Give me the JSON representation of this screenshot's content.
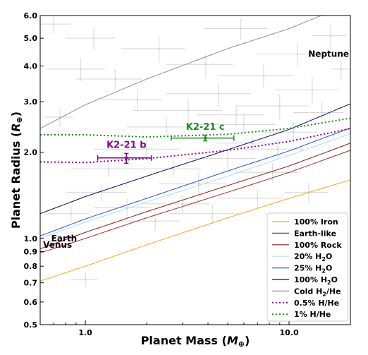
{
  "chart_data": {
    "type": "line",
    "xlabel": "Planet Mass (M⊕)",
    "xlabel_main": "Planet Mass (",
    "xlabel_symbol": "M",
    "xlabel_sub": "⊕",
    "xlabel_close": ")",
    "ylabel": "Planet Radius (R⊕)",
    "ylabel_main": "Planet Radius (",
    "ylabel_symbol": "R",
    "ylabel_sub": "⊕",
    "ylabel_close": ")",
    "xscale": "log",
    "yscale": "log",
    "xlim": [
      0.6,
      20
    ],
    "ylim": [
      0.5,
      6.0
    ],
    "x_ticks": [
      {
        "value": 1.0,
        "label": "1.0"
      },
      {
        "value": 10.0,
        "label": "10.0"
      }
    ],
    "y_ticks": [
      {
        "value": 0.5,
        "label": "0.5"
      },
      {
        "value": 0.6,
        "label": "0.6"
      },
      {
        "value": 0.7,
        "label": "0.7"
      },
      {
        "value": 0.8,
        "label": "0.8"
      },
      {
        "value": 0.9,
        "label": "0.9"
      },
      {
        "value": 1.0,
        "label": "1.0"
      },
      {
        "value": 2.0,
        "label": "2.0"
      },
      {
        "value": 3.0,
        "label": "3.0"
      },
      {
        "value": 4.0,
        "label": "4.0"
      },
      {
        "value": 5.0,
        "label": "5.0"
      },
      {
        "value": 6.0,
        "label": "6.0"
      }
    ],
    "legend_position": "bottom-right",
    "series": [
      {
        "name": "100% Iron",
        "color": "#f5a623",
        "style": "solid",
        "x": [
          0.6,
          1,
          2,
          5,
          10,
          20
        ],
        "y": [
          0.71,
          0.8,
          0.95,
          1.18,
          1.38,
          1.6
        ]
      },
      {
        "name": "Earth-like",
        "color": "#a0302a",
        "style": "solid",
        "x": [
          0.6,
          1,
          2,
          5,
          10,
          20
        ],
        "y": [
          0.89,
          1.0,
          1.18,
          1.45,
          1.7,
          2.03
        ]
      },
      {
        "name": "100% Rock",
        "color": "#8b1a1a",
        "style": "solid",
        "x": [
          0.6,
          1,
          2,
          5,
          10,
          20
        ],
        "y": [
          0.92,
          1.05,
          1.24,
          1.53,
          1.79,
          2.15
        ]
      },
      {
        "name": "20% H₂O",
        "color": "#b8d8f2",
        "style": "solid",
        "x": [
          0.6,
          1,
          2,
          5,
          10,
          20
        ],
        "y": [
          1.0,
          1.14,
          1.34,
          1.65,
          1.95,
          2.32
        ]
      },
      {
        "name": "25% H₂O",
        "color": "#2255e6",
        "style": "solid",
        "x": [
          0.6,
          1,
          2,
          5,
          10,
          20
        ],
        "y": [
          1.02,
          1.17,
          1.38,
          1.72,
          2.02,
          2.43
        ]
      },
      {
        "name": "100% H₂O",
        "color": "#0a0a6e",
        "style": "solid",
        "x": [
          0.6,
          1,
          2,
          5,
          10,
          20
        ],
        "y": [
          1.22,
          1.4,
          1.65,
          2.04,
          2.4,
          2.95
        ]
      },
      {
        "name": "Cold H₂/He",
        "color": "#909090",
        "style": "solid",
        "x": [
          0.6,
          1,
          2,
          5,
          10,
          20
        ],
        "y": [
          2.42,
          2.93,
          3.6,
          4.6,
          5.4,
          6.6
        ]
      },
      {
        "name": "0.5% H/He",
        "color": "#8b008b",
        "style": "dotted",
        "x": [
          0.6,
          1,
          2,
          5,
          10,
          20
        ],
        "y": [
          1.85,
          1.84,
          1.9,
          2.03,
          2.18,
          2.42
        ]
      },
      {
        "name": "1% H/He",
        "color": "#1e8b1e",
        "style": "dotted",
        "x": [
          0.6,
          1,
          2,
          5,
          10,
          20
        ],
        "y": [
          2.3,
          2.3,
          2.26,
          2.31,
          2.42,
          2.63
        ]
      }
    ],
    "legend_parts": [
      {
        "main": "100% Iron",
        "sub": "",
        "rest": ""
      },
      {
        "main": "Earth-like",
        "sub": "",
        "rest": ""
      },
      {
        "main": "100% Rock",
        "sub": "",
        "rest": ""
      },
      {
        "main": "20% H",
        "sub": "2",
        "rest": "O"
      },
      {
        "main": "25% H",
        "sub": "2",
        "rest": "O"
      },
      {
        "main": "100% H",
        "sub": "2",
        "rest": "O"
      },
      {
        "main": "Cold H",
        "sub": "2",
        "rest": "/He"
      },
      {
        "main": "0.5% H/He",
        "sub": "",
        "rest": ""
      },
      {
        "main": "1% H/He",
        "sub": "",
        "rest": ""
      }
    ],
    "planets": [
      {
        "label": "K2-21 b",
        "color": "#8b008b",
        "mass": 1.59,
        "mass_err": [
          0.44,
          0.52
        ],
        "radius": 1.91,
        "radius_err": [
          0.08,
          0.07
        ]
      },
      {
        "label": "K2-21 c",
        "color": "#1e8b1e",
        "mass": 3.88,
        "mass_err": [
          1.24,
          1.48
        ],
        "radius": 2.24,
        "radius_err": [
          0.05,
          0.05
        ]
      }
    ],
    "annotations": [
      {
        "text": "Neptune",
        "x": 17.0,
        "y": 4.3
      },
      {
        "text": "Earth",
        "x": 0.8,
        "y": 1.0
      },
      {
        "text": "Venus",
        "x": 0.8,
        "y": 0.96
      }
    ],
    "background_points": [
      {
        "x": 0.7,
        "y": 5.6,
        "ex": 0.15,
        "ey": 0.4
      },
      {
        "x": 0.95,
        "y": 3.9,
        "ex": 0.3,
        "ey": 0.35
      },
      {
        "x": 1.4,
        "y": 3.6,
        "ex": 0.5,
        "ey": 0.3
      },
      {
        "x": 2.3,
        "y": 4.6,
        "ex": 0.8,
        "ey": 0.5
      },
      {
        "x": 3.2,
        "y": 2.8,
        "ex": 1.5,
        "ey": 0.25
      },
      {
        "x": 4.5,
        "y": 3.2,
        "ex": 2.0,
        "ey": 0.3
      },
      {
        "x": 6.0,
        "y": 2.5,
        "ex": 2.5,
        "ey": 0.2
      },
      {
        "x": 7.5,
        "y": 3.7,
        "ex": 3.0,
        "ey": 0.35
      },
      {
        "x": 9.0,
        "y": 2.9,
        "ex": 3.5,
        "ey": 0.3
      },
      {
        "x": 11.0,
        "y": 4.4,
        "ex": 4.0,
        "ey": 0.4
      },
      {
        "x": 13.0,
        "y": 3.3,
        "ex": 4.5,
        "ey": 0.35
      },
      {
        "x": 16.0,
        "y": 5.1,
        "ex": 3.0,
        "ey": 0.5
      },
      {
        "x": 2.0,
        "y": 2.05,
        "ex": 0.9,
        "ey": 0.15
      },
      {
        "x": 2.7,
        "y": 1.75,
        "ex": 1.0,
        "ey": 0.12
      },
      {
        "x": 3.6,
        "y": 1.55,
        "ex": 1.3,
        "ey": 0.14
      },
      {
        "x": 5.0,
        "y": 1.9,
        "ex": 1.8,
        "ey": 0.15
      },
      {
        "x": 6.6,
        "y": 2.15,
        "ex": 2.2,
        "ey": 0.18
      },
      {
        "x": 8.3,
        "y": 1.7,
        "ex": 2.8,
        "ey": 0.14
      },
      {
        "x": 10.5,
        "y": 2.35,
        "ex": 3.2,
        "ey": 0.2
      },
      {
        "x": 12.5,
        "y": 1.45,
        "ex": 3.0,
        "ey": 0.12
      },
      {
        "x": 1.2,
        "y": 1.45,
        "ex": 0.4,
        "ey": 0.1
      },
      {
        "x": 1.6,
        "y": 1.28,
        "ex": 0.5,
        "ey": 0.1
      },
      {
        "x": 0.85,
        "y": 1.22,
        "ex": 0.2,
        "ey": 0.08
      },
      {
        "x": 2.2,
        "y": 1.15,
        "ex": 0.7,
        "ey": 0.09
      },
      {
        "x": 3.0,
        "y": 1.32,
        "ex": 1.1,
        "ey": 0.1
      },
      {
        "x": 4.2,
        "y": 1.22,
        "ex": 1.6,
        "ey": 0.1
      },
      {
        "x": 5.5,
        "y": 2.7,
        "ex": 2.0,
        "ey": 0.22
      },
      {
        "x": 7.0,
        "y": 1.38,
        "ex": 2.5,
        "ey": 0.11
      },
      {
        "x": 14.5,
        "y": 2.75,
        "ex": 4.0,
        "ey": 0.25
      },
      {
        "x": 18.0,
        "y": 3.9,
        "ex": 2.0,
        "ey": 0.35
      },
      {
        "x": 0.75,
        "y": 2.65,
        "ex": 0.12,
        "ey": 0.2
      },
      {
        "x": 1.1,
        "y": 5.0,
        "ex": 0.3,
        "ey": 0.45
      },
      {
        "x": 1.8,
        "y": 3.05,
        "ex": 0.6,
        "ey": 0.28
      },
      {
        "x": 2.5,
        "y": 2.45,
        "ex": 0.9,
        "ey": 0.2
      },
      {
        "x": 3.9,
        "y": 4.05,
        "ex": 1.4,
        "ey": 0.38
      },
      {
        "x": 5.8,
        "y": 5.4,
        "ex": 2.0,
        "ey": 0.45
      },
      {
        "x": 8.8,
        "y": 2.05,
        "ex": 3.0,
        "ey": 0.17
      },
      {
        "x": 1.0,
        "y": 0.72,
        "ex": 0.15,
        "ey": 0.04
      },
      {
        "x": 0.68,
        "y": 0.98,
        "ex": 0.1,
        "ey": 0.05
      },
      {
        "x": 1.3,
        "y": 1.75,
        "ex": 0.45,
        "ey": 0.12
      }
    ]
  }
}
